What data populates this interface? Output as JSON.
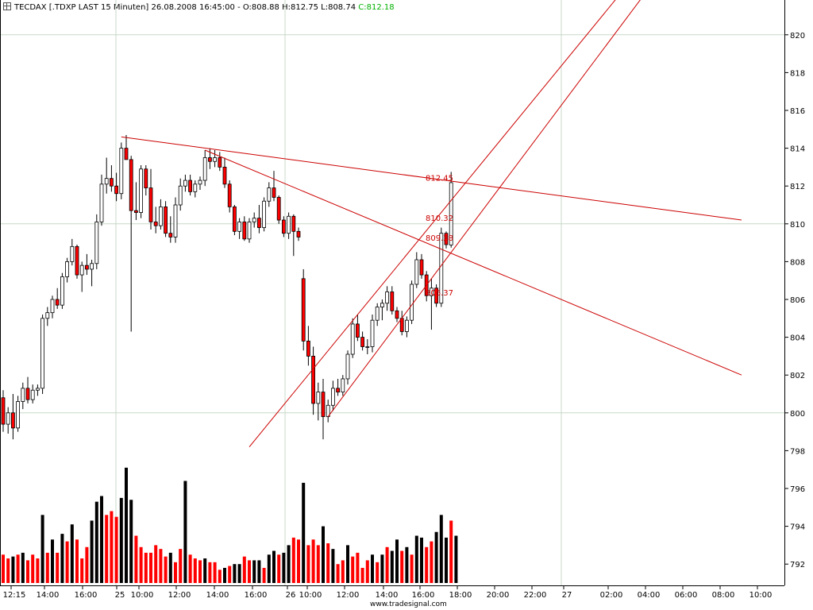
{
  "header": {
    "symbol": "TECDAX [.TDXP LAST 15 Minuten]",
    "datetime": "26.08.2008 16:45:00",
    "ohl": "- O:808.88 H:812.75 L:808.74",
    "close": "C:812.18"
  },
  "watermark": "www.tradesignal.com",
  "colors": {
    "up": "#000000",
    "down": "#ff0000",
    "trendline": "#cc0000",
    "grid": "#c8d8c8",
    "close_text": "#00b000"
  },
  "chart_data": {
    "type": "candlestick",
    "grid": true,
    "y_axis": {
      "min": 791,
      "max": 821,
      "ticks": [
        820,
        818,
        816,
        814,
        812,
        810,
        808,
        806,
        804,
        802,
        800,
        798,
        796,
        794,
        792
      ],
      "position": "right"
    },
    "x_axis": {
      "ticks": [
        "12:15",
        "14:00",
        "16:00",
        "25",
        "10:00",
        "12:00",
        "14:00",
        "16:00",
        "26",
        "10:00",
        "12:00",
        "14:00",
        "16:00",
        "18:00",
        "20:00",
        "22:00",
        "27",
        "02:00",
        "04:00",
        "06:00",
        "08:00",
        "10:00"
      ]
    },
    "volume_scale_floor": 791,
    "candles": [
      {
        "o": 800.8,
        "h": 801.2,
        "l": 799.0,
        "c": 799.4
      },
      {
        "o": 799.4,
        "h": 800.3,
        "l": 798.9,
        "c": 800.0
      },
      {
        "o": 800.0,
        "h": 801.0,
        "l": 798.6,
        "c": 799.2
      },
      {
        "o": 799.2,
        "h": 800.9,
        "l": 799.0,
        "c": 800.6
      },
      {
        "o": 800.6,
        "h": 801.6,
        "l": 800.2,
        "c": 801.3
      },
      {
        "o": 801.3,
        "h": 801.9,
        "l": 800.5,
        "c": 800.7
      },
      {
        "o": 800.7,
        "h": 801.5,
        "l": 800.5,
        "c": 801.2
      },
      {
        "o": 801.2,
        "h": 801.5,
        "l": 800.9,
        "c": 801.3
      },
      {
        "o": 801.3,
        "h": 805.2,
        "l": 801.0,
        "c": 805.0
      },
      {
        "o": 805.0,
        "h": 805.6,
        "l": 804.6,
        "c": 805.3
      },
      {
        "o": 805.3,
        "h": 806.2,
        "l": 805.0,
        "c": 806.0
      },
      {
        "o": 806.0,
        "h": 806.6,
        "l": 805.5,
        "c": 805.7
      },
      {
        "o": 805.7,
        "h": 807.4,
        "l": 805.5,
        "c": 807.2
      },
      {
        "o": 807.2,
        "h": 808.2,
        "l": 806.9,
        "c": 808.0
      },
      {
        "o": 808.0,
        "h": 809.2,
        "l": 807.8,
        "c": 808.8
      },
      {
        "o": 808.8,
        "h": 808.9,
        "l": 807.1,
        "c": 807.3
      },
      {
        "o": 807.3,
        "h": 808.0,
        "l": 806.4,
        "c": 807.8
      },
      {
        "o": 807.8,
        "h": 808.4,
        "l": 807.3,
        "c": 807.6
      },
      {
        "o": 807.6,
        "h": 808.1,
        "l": 806.7,
        "c": 807.9
      },
      {
        "o": 807.9,
        "h": 810.5,
        "l": 807.6,
        "c": 810.1
      },
      {
        "o": 810.1,
        "h": 812.6,
        "l": 809.9,
        "c": 812.1
      },
      {
        "o": 812.1,
        "h": 813.5,
        "l": 811.6,
        "c": 812.4
      },
      {
        "o": 812.4,
        "h": 813.1,
        "l": 811.7,
        "c": 812.0
      },
      {
        "o": 812.0,
        "h": 812.7,
        "l": 811.2,
        "c": 811.6
      },
      {
        "o": 811.6,
        "h": 814.3,
        "l": 811.3,
        "c": 814.0
      },
      {
        "o": 814.0,
        "h": 814.7,
        "l": 813.4,
        "c": 813.4
      },
      {
        "o": 813.4,
        "h": 813.6,
        "l": 804.3,
        "c": 810.7
      },
      {
        "o": 810.7,
        "h": 812.2,
        "l": 810.2,
        "c": 810.6
      },
      {
        "o": 810.6,
        "h": 813.1,
        "l": 810.3,
        "c": 812.9
      },
      {
        "o": 812.9,
        "h": 813.1,
        "l": 811.5,
        "c": 811.9
      },
      {
        "o": 811.9,
        "h": 812.9,
        "l": 809.7,
        "c": 810.1
      },
      {
        "o": 810.1,
        "h": 810.9,
        "l": 809.5,
        "c": 809.9
      },
      {
        "o": 809.9,
        "h": 811.3,
        "l": 809.7,
        "c": 810.9
      },
      {
        "o": 810.9,
        "h": 811.2,
        "l": 809.3,
        "c": 809.5
      },
      {
        "o": 809.5,
        "h": 810.4,
        "l": 809.0,
        "c": 809.3
      },
      {
        "o": 809.3,
        "h": 811.4,
        "l": 809.0,
        "c": 811.0
      },
      {
        "o": 811.0,
        "h": 812.4,
        "l": 810.7,
        "c": 812.0
      },
      {
        "o": 812.0,
        "h": 812.6,
        "l": 811.7,
        "c": 812.3
      },
      {
        "o": 812.3,
        "h": 812.6,
        "l": 811.5,
        "c": 811.7
      },
      {
        "o": 811.7,
        "h": 812.3,
        "l": 811.4,
        "c": 812.1
      },
      {
        "o": 812.1,
        "h": 812.5,
        "l": 811.8,
        "c": 812.3
      },
      {
        "o": 812.3,
        "h": 813.9,
        "l": 812.0,
        "c": 813.5
      },
      {
        "o": 813.5,
        "h": 814.0,
        "l": 812.9,
        "c": 813.3
      },
      {
        "o": 813.3,
        "h": 813.9,
        "l": 813.0,
        "c": 813.5
      },
      {
        "o": 813.5,
        "h": 813.8,
        "l": 812.8,
        "c": 813.0
      },
      {
        "o": 813.0,
        "h": 813.5,
        "l": 811.9,
        "c": 812.1
      },
      {
        "o": 812.1,
        "h": 812.3,
        "l": 810.6,
        "c": 810.9
      },
      {
        "o": 810.9,
        "h": 811.0,
        "l": 809.4,
        "c": 809.6
      },
      {
        "o": 809.6,
        "h": 810.3,
        "l": 809.2,
        "c": 810.1
      },
      {
        "o": 810.1,
        "h": 810.4,
        "l": 809.1,
        "c": 809.2
      },
      {
        "o": 809.2,
        "h": 810.3,
        "l": 809.0,
        "c": 810.1
      },
      {
        "o": 810.1,
        "h": 810.6,
        "l": 809.8,
        "c": 810.3
      },
      {
        "o": 810.3,
        "h": 811.0,
        "l": 809.5,
        "c": 809.8
      },
      {
        "o": 809.8,
        "h": 811.4,
        "l": 809.6,
        "c": 811.2
      },
      {
        "o": 811.2,
        "h": 812.2,
        "l": 810.9,
        "c": 811.9
      },
      {
        "o": 811.9,
        "h": 812.8,
        "l": 811.2,
        "c": 811.4
      },
      {
        "o": 811.4,
        "h": 811.5,
        "l": 810.0,
        "c": 810.2
      },
      {
        "o": 810.2,
        "h": 810.4,
        "l": 809.3,
        "c": 809.5
      },
      {
        "o": 809.5,
        "h": 810.6,
        "l": 809.2,
        "c": 810.4
      },
      {
        "o": 810.4,
        "h": 810.5,
        "l": 808.3,
        "c": 809.6
      },
      {
        "o": 809.6,
        "h": 809.8,
        "l": 809.1,
        "c": 809.3
      },
      {
        "o": 807.1,
        "h": 807.6,
        "l": 803.3,
        "c": 803.8
      },
      {
        "o": 803.8,
        "h": 804.6,
        "l": 802.5,
        "c": 803.0
      },
      {
        "o": 803.0,
        "h": 803.5,
        "l": 799.9,
        "c": 800.5
      },
      {
        "o": 800.5,
        "h": 801.6,
        "l": 799.6,
        "c": 801.1
      },
      {
        "o": 801.1,
        "h": 801.8,
        "l": 798.6,
        "c": 799.8
      },
      {
        "o": 799.8,
        "h": 800.7,
        "l": 799.5,
        "c": 800.4
      },
      {
        "o": 800.4,
        "h": 801.7,
        "l": 800.1,
        "c": 801.3
      },
      {
        "o": 801.3,
        "h": 801.8,
        "l": 800.9,
        "c": 801.1
      },
      {
        "o": 801.1,
        "h": 802.0,
        "l": 800.9,
        "c": 801.8
      },
      {
        "o": 801.8,
        "h": 803.3,
        "l": 801.5,
        "c": 803.1
      },
      {
        "o": 803.1,
        "h": 805.0,
        "l": 802.9,
        "c": 804.7
      },
      {
        "o": 804.7,
        "h": 805.2,
        "l": 803.8,
        "c": 804.0
      },
      {
        "o": 804.0,
        "h": 804.3,
        "l": 803.3,
        "c": 803.5
      },
      {
        "o": 803.5,
        "h": 803.9,
        "l": 803.1,
        "c": 803.5
      },
      {
        "o": 803.5,
        "h": 805.2,
        "l": 803.2,
        "c": 804.9
      },
      {
        "o": 804.9,
        "h": 805.8,
        "l": 804.6,
        "c": 805.6
      },
      {
        "o": 805.6,
        "h": 806.0,
        "l": 804.9,
        "c": 805.8
      },
      {
        "o": 805.8,
        "h": 806.7,
        "l": 805.4,
        "c": 806.4
      },
      {
        "o": 806.4,
        "h": 806.7,
        "l": 805.2,
        "c": 805.4
      },
      {
        "o": 805.4,
        "h": 805.6,
        "l": 804.8,
        "c": 805.0
      },
      {
        "o": 805.0,
        "h": 805.4,
        "l": 804.1,
        "c": 804.3
      },
      {
        "o": 804.3,
        "h": 805.1,
        "l": 804.0,
        "c": 804.9
      },
      {
        "o": 804.9,
        "h": 807.0,
        "l": 804.7,
        "c": 806.8
      },
      {
        "o": 806.8,
        "h": 808.5,
        "l": 806.6,
        "c": 808.1
      },
      {
        "o": 808.1,
        "h": 808.4,
        "l": 807.1,
        "c": 807.3
      },
      {
        "o": 807.3,
        "h": 807.5,
        "l": 805.9,
        "c": 806.2
      },
      {
        "o": 806.2,
        "h": 807.1,
        "l": 804.4,
        "c": 806.6
      },
      {
        "o": 806.6,
        "h": 806.8,
        "l": 805.6,
        "c": 805.8
      },
      {
        "o": 805.8,
        "h": 809.8,
        "l": 805.6,
        "c": 809.5
      },
      {
        "o": 809.5,
        "h": 809.6,
        "l": 808.7,
        "c": 808.9
      },
      {
        "o": 808.88,
        "h": 812.75,
        "l": 808.74,
        "c": 812.18
      }
    ],
    "volume": [
      {
        "v": 792.5,
        "up": false
      },
      {
        "v": 792.3,
        "up": false
      },
      {
        "v": 792.4,
        "up": true
      },
      {
        "v": 792.5,
        "up": false
      },
      {
        "v": 792.6,
        "up": true
      },
      {
        "v": 792.2,
        "up": false
      },
      {
        "v": 792.5,
        "up": false
      },
      {
        "v": 792.3,
        "up": false
      },
      {
        "v": 794.6,
        "up": true
      },
      {
        "v": 792.6,
        "up": false
      },
      {
        "v": 793.3,
        "up": true
      },
      {
        "v": 792.6,
        "up": false
      },
      {
        "v": 793.6,
        "up": true
      },
      {
        "v": 793.2,
        "up": false
      },
      {
        "v": 794.1,
        "up": true
      },
      {
        "v": 793.3,
        "up": false
      },
      {
        "v": 792.3,
        "up": false
      },
      {
        "v": 792.9,
        "up": false
      },
      {
        "v": 794.3,
        "up": true
      },
      {
        "v": 795.3,
        "up": true
      },
      {
        "v": 795.6,
        "up": true
      },
      {
        "v": 794.6,
        "up": false
      },
      {
        "v": 794.8,
        "up": false
      },
      {
        "v": 794.5,
        "up": false
      },
      {
        "v": 795.5,
        "up": true
      },
      {
        "v": 797.1,
        "up": true
      },
      {
        "v": 795.4,
        "up": true
      },
      {
        "v": 793.5,
        "up": false
      },
      {
        "v": 792.9,
        "up": false
      },
      {
        "v": 792.6,
        "up": false
      },
      {
        "v": 792.6,
        "up": false
      },
      {
        "v": 793.0,
        "up": false
      },
      {
        "v": 792.8,
        "up": false
      },
      {
        "v": 792.4,
        "up": false
      },
      {
        "v": 792.6,
        "up": true
      },
      {
        "v": 792.1,
        "up": false
      },
      {
        "v": 792.8,
        "up": false
      },
      {
        "v": 796.4,
        "up": true
      },
      {
        "v": 792.5,
        "up": false
      },
      {
        "v": 792.3,
        "up": false
      },
      {
        "v": 792.2,
        "up": false
      },
      {
        "v": 792.3,
        "up": true
      },
      {
        "v": 792.1,
        "up": false
      },
      {
        "v": 792.1,
        "up": false
      },
      {
        "v": 791.7,
        "up": false
      },
      {
        "v": 791.8,
        "up": true
      },
      {
        "v": 791.9,
        "up": false
      },
      {
        "v": 792.0,
        "up": true
      },
      {
        "v": 792.0,
        "up": true
      },
      {
        "v": 792.4,
        "up": false
      },
      {
        "v": 792.2,
        "up": false
      },
      {
        "v": 792.2,
        "up": true
      },
      {
        "v": 792.2,
        "up": true
      },
      {
        "v": 791.8,
        "up": false
      },
      {
        "v": 792.5,
        "up": true
      },
      {
        "v": 792.7,
        "up": true
      },
      {
        "v": 792.5,
        "up": false
      },
      {
        "v": 792.6,
        "up": true
      },
      {
        "v": 793.0,
        "up": true
      },
      {
        "v": 793.4,
        "up": false
      },
      {
        "v": 793.3,
        "up": false
      },
      {
        "v": 796.3,
        "up": true
      },
      {
        "v": 793.0,
        "up": false
      },
      {
        "v": 793.3,
        "up": false
      },
      {
        "v": 793.0,
        "up": false
      },
      {
        "v": 794.0,
        "up": true
      },
      {
        "v": 793.1,
        "up": false
      },
      {
        "v": 792.8,
        "up": true
      },
      {
        "v": 792.0,
        "up": false
      },
      {
        "v": 792.2,
        "up": false
      },
      {
        "v": 793.0,
        "up": true
      },
      {
        "v": 792.4,
        "up": false
      },
      {
        "v": 792.6,
        "up": false
      },
      {
        "v": 791.8,
        "up": false
      },
      {
        "v": 792.2,
        "up": false
      },
      {
        "v": 792.5,
        "up": true
      },
      {
        "v": 792.1,
        "up": false
      },
      {
        "v": 792.5,
        "up": true
      },
      {
        "v": 792.9,
        "up": false
      },
      {
        "v": 792.7,
        "up": true
      },
      {
        "v": 793.3,
        "up": true
      },
      {
        "v": 792.7,
        "up": false
      },
      {
        "v": 792.9,
        "up": true
      },
      {
        "v": 792.5,
        "up": false
      },
      {
        "v": 793.5,
        "up": true
      },
      {
        "v": 793.4,
        "up": true
      },
      {
        "v": 792.9,
        "up": false
      },
      {
        "v": 793.2,
        "up": false
      },
      {
        "v": 793.7,
        "up": true
      },
      {
        "v": 794.6,
        "up": true
      },
      {
        "v": 793.4,
        "up": true
      },
      {
        "v": 794.3,
        "up": false
      },
      {
        "v": 793.5,
        "up": true
      }
    ],
    "trendlines": [
      {
        "from": [
          24,
          814.6
        ],
        "to": [
          150,
          810.2
        ],
        "style": "resistance"
      },
      {
        "from": [
          41,
          813.9
        ],
        "to": [
          150,
          802.0
        ],
        "style": "resistance"
      },
      {
        "from": [
          66,
          799.8
        ],
        "to": [
          150,
          829.0
        ],
        "style": "channel-lower"
      },
      {
        "from": [
          50,
          798.2
        ],
        "to": [
          150,
          830.0
        ],
        "style": "channel-upper"
      }
    ],
    "annotations": [
      "812.45",
      "810.32",
      "809.28",
      "806.37"
    ]
  }
}
